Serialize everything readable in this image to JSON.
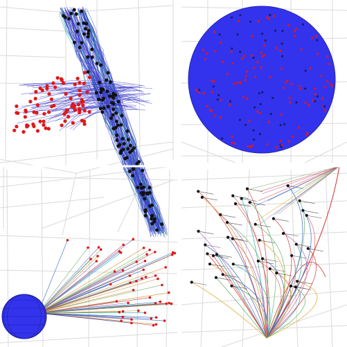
{
  "figure": {
    "panels": [
      {
        "id": "panel-top-left",
        "description_key": "fiber-bundle-crossing"
      },
      {
        "id": "panel-top-right",
        "description_key": "sphere-with-points"
      },
      {
        "id": "panel-bottom-left",
        "description_key": "sphere-with-rays"
      },
      {
        "id": "panel-bottom-right",
        "description_key": "fan-of-curves"
      }
    ]
  },
  "colors": {
    "sphere_fill": "#3333ee",
    "sphere_edge": "#2222aa",
    "red_marker": "#e01818",
    "black_marker": "#111111",
    "blue_curve": "#3a3ac8",
    "teal_curve": "#20a0a0",
    "grid": "#d9d9d9"
  },
  "icons": []
}
